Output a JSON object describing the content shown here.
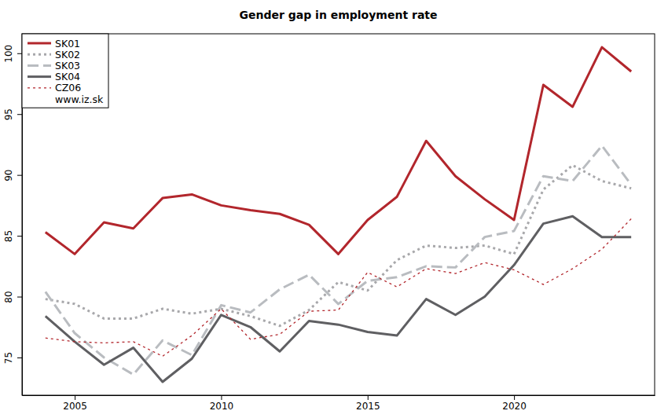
{
  "chart_data": {
    "type": "line",
    "title": "Gender gap in employment rate",
    "source": "www.iz.sk",
    "x": [
      2004,
      2005,
      2006,
      2007,
      2008,
      2009,
      2010,
      2011,
      2012,
      2013,
      2014,
      2015,
      2016,
      2017,
      2018,
      2019,
      2020,
      2021,
      2022,
      2023,
      2024
    ],
    "series": [
      {
        "name": "SK01",
        "color": "#b2262c",
        "line_style": "solid",
        "values": [
          85.3,
          83.5,
          86.1,
          85.6,
          88.1,
          88.4,
          87.5,
          87.1,
          86.8,
          85.9,
          83.5,
          86.3,
          88.2,
          92.8,
          89.9,
          88.0,
          86.3,
          97.4,
          95.6,
          100.5,
          98.5
        ]
      },
      {
        "name": "SK02",
        "color": "#a8a8ab",
        "line_style": "dotted",
        "values": [
          79.8,
          79.4,
          78.2,
          78.2,
          79.0,
          78.6,
          79.0,
          78.4,
          77.6,
          78.9,
          81.2,
          80.5,
          83.0,
          84.2,
          84.0,
          84.2,
          83.5,
          88.8,
          90.8,
          89.5,
          88.9
        ]
      },
      {
        "name": "SK03",
        "color": "#b9bcc0",
        "line_style": "dashed",
        "values": [
          80.4,
          77.0,
          75.0,
          73.6,
          76.4,
          75.2,
          79.3,
          78.7,
          80.6,
          81.8,
          79.4,
          81.3,
          81.6,
          82.5,
          82.4,
          84.9,
          85.4,
          89.9,
          89.5,
          92.4,
          89.2
        ]
      },
      {
        "name": "SK04",
        "color": "#5f5f62",
        "line_style": "solid",
        "values": [
          78.4,
          76.3,
          74.4,
          75.8,
          73.0,
          74.9,
          78.5,
          77.5,
          75.5,
          78.0,
          77.7,
          77.1,
          76.8,
          79.8,
          78.5,
          80.0,
          82.6,
          86.0,
          86.6,
          84.9,
          84.9
        ]
      },
      {
        "name": "CZ06",
        "color": "#b2262c",
        "line_style": "dotted",
        "values": [
          76.6,
          76.3,
          76.2,
          76.3,
          75.1,
          76.8,
          79.0,
          76.5,
          76.9,
          78.8,
          78.9,
          82.0,
          80.8,
          82.3,
          81.9,
          82.8,
          82.2,
          81.0,
          82.3,
          83.9,
          86.4
        ]
      }
    ],
    "xlim": [
      2003.2,
      2024.8
    ],
    "xticks": [
      2005,
      2010,
      2015,
      2020
    ],
    "ylim": [
      71.9,
      101.6
    ],
    "yticks": [
      75,
      80,
      85,
      90,
      95,
      100
    ],
    "grid": false,
    "legend": "top-left"
  }
}
